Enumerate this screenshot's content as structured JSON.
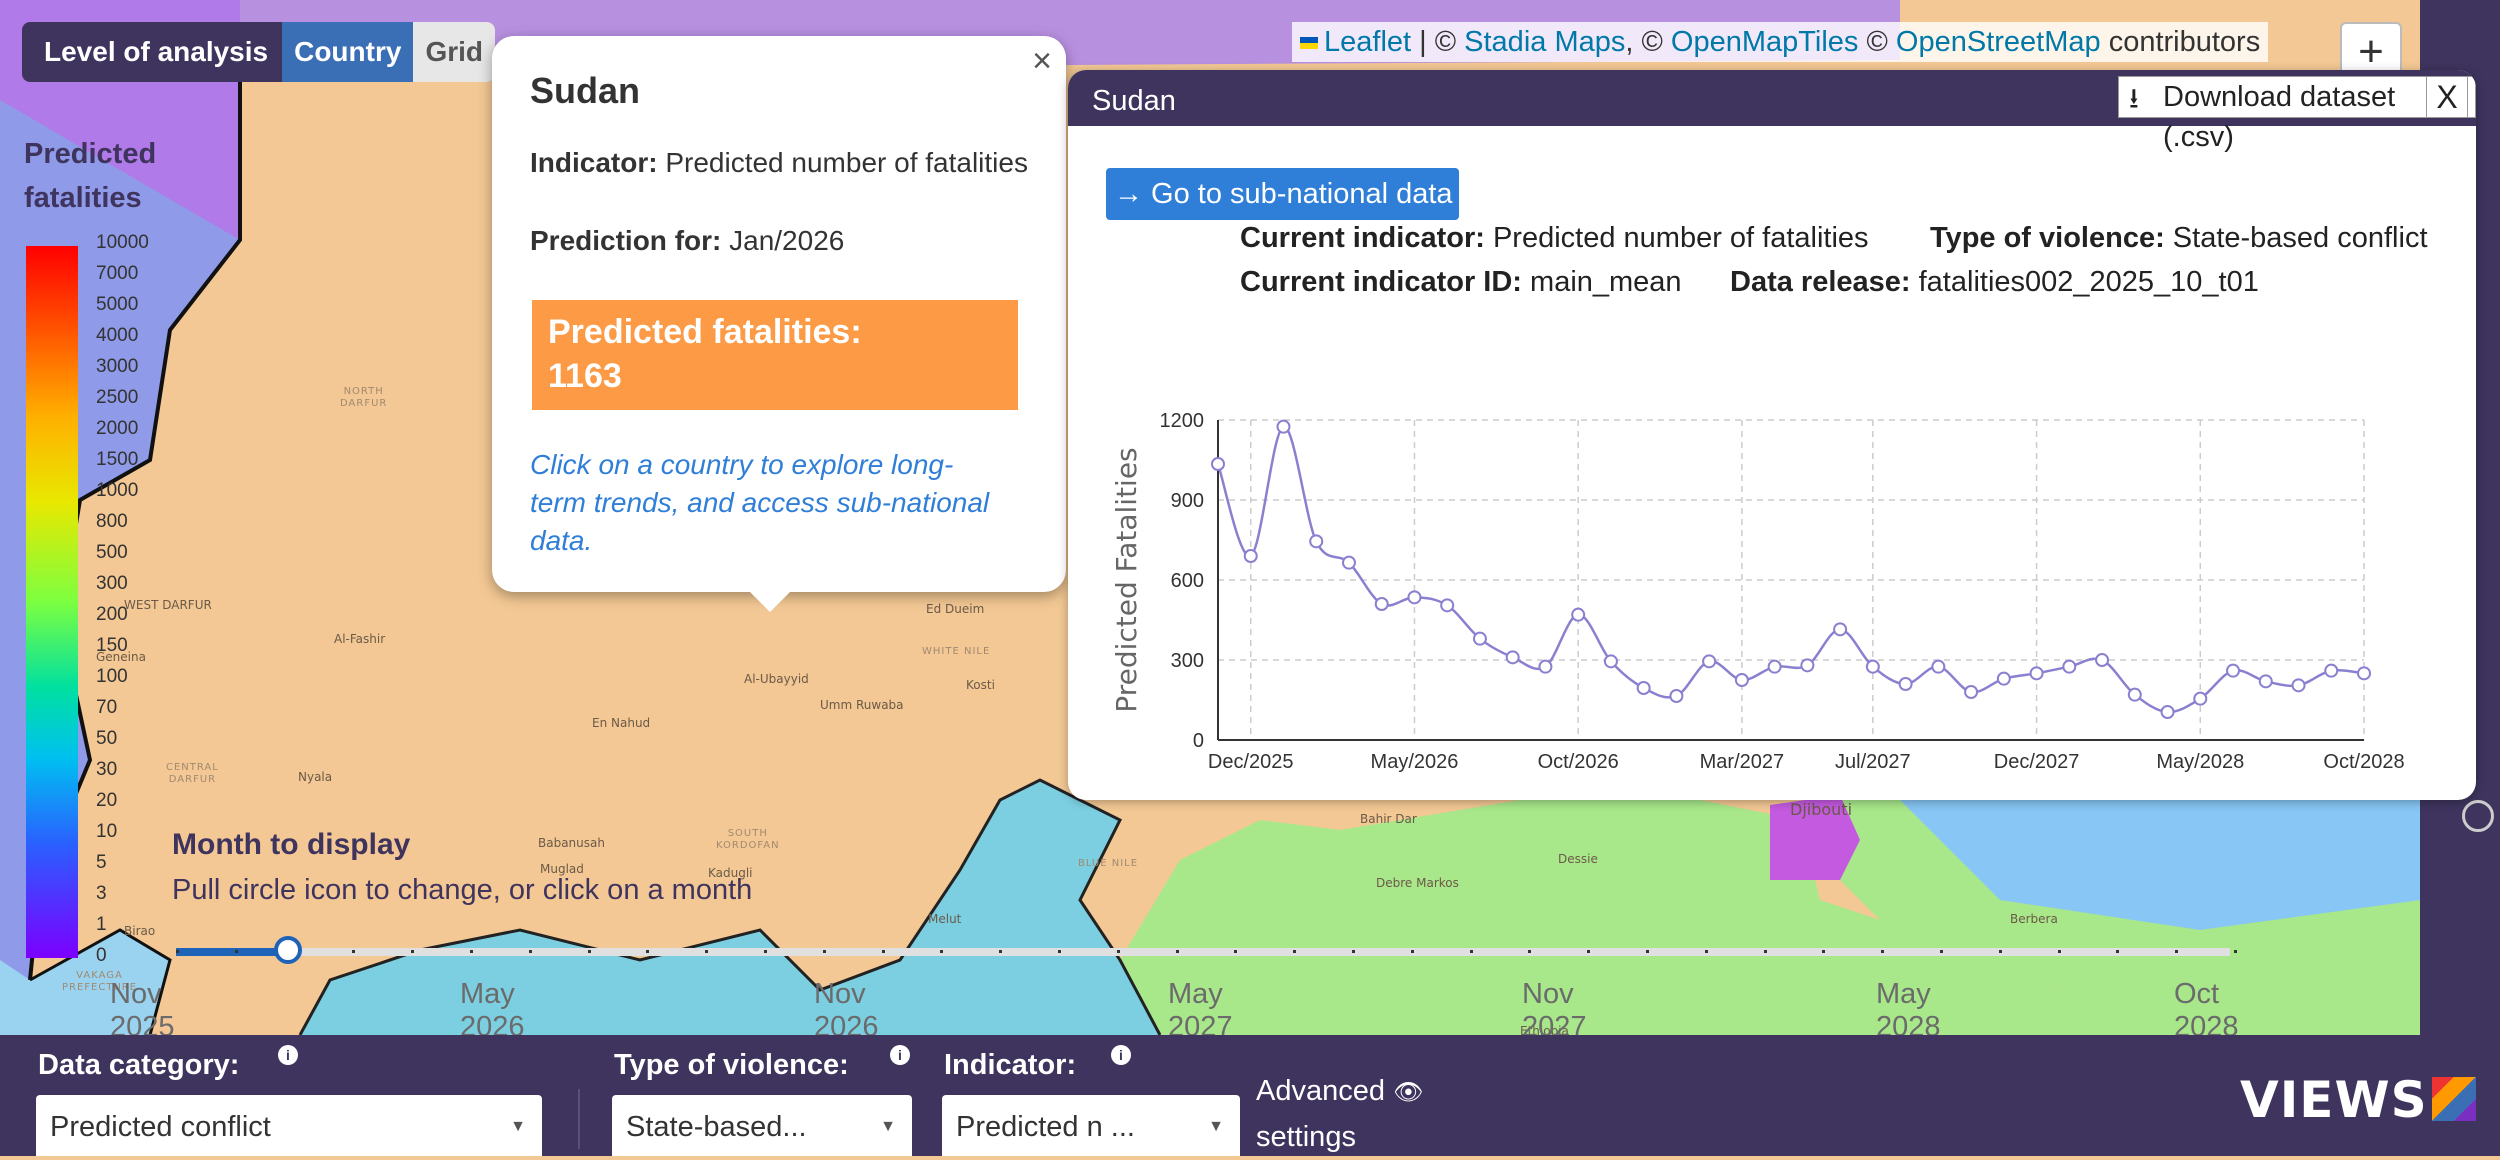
{
  "level": {
    "label": "Level of analysis",
    "options": [
      "Country",
      "Grid"
    ],
    "selected": "Country"
  },
  "legend": {
    "title_line1": "Predicted",
    "title_line2": "fatalities",
    "ticks": [
      "10000",
      "7000",
      "5000",
      "4000",
      "3000",
      "2500",
      "2000",
      "1500",
      "1000",
      "800",
      "500",
      "300",
      "200",
      "150",
      "100",
      "70",
      "50",
      "30",
      "20",
      "10",
      "5",
      "3",
      "1",
      "0"
    ]
  },
  "map_places": [
    {
      "name": "NORTH\nDARFUR",
      "kind": "region"
    },
    {
      "name": "WEST DARFUR",
      "kind": "region"
    },
    {
      "name": "Al-Fashir",
      "kind": "city"
    },
    {
      "name": "Geneina",
      "kind": "city"
    },
    {
      "name": "Nyala",
      "kind": "city"
    },
    {
      "name": "CENTRAL\nDARFUR",
      "kind": "region"
    },
    {
      "name": "En Nahud",
      "kind": "city"
    },
    {
      "name": "Al-Ubayyid",
      "kind": "city"
    },
    {
      "name": "Umm Ruwaba",
      "kind": "city"
    },
    {
      "name": "Kosti",
      "kind": "city"
    },
    {
      "name": "Ed Dueim",
      "kind": "city"
    },
    {
      "name": "WHITE NILE",
      "kind": "region"
    },
    {
      "name": "Babanusah",
      "kind": "city"
    },
    {
      "name": "Muglad",
      "kind": "city"
    },
    {
      "name": "Kadugli",
      "kind": "city"
    },
    {
      "name": "SOUTH\nKORDOFAN",
      "kind": "region"
    },
    {
      "name": "BLUE NILE",
      "kind": "region"
    },
    {
      "name": "Birao",
      "kind": "city"
    },
    {
      "name": "VAKAGA\nPREFECTURE",
      "kind": "region"
    },
    {
      "name": "Melut",
      "kind": "city"
    },
    {
      "name": "Bahir Dar",
      "kind": "city"
    },
    {
      "name": "Djibouti",
      "kind": "city"
    },
    {
      "name": "Dessie",
      "kind": "city"
    },
    {
      "name": "Debre Markos",
      "kind": "city"
    },
    {
      "name": "Berbera",
      "kind": "city"
    },
    {
      "name": "Ethiopia",
      "kind": "region"
    }
  ],
  "popup": {
    "close": "×",
    "title": "Sudan",
    "indicator_label": "Indicator:",
    "indicator_value": "Predicted number of fatalities",
    "prediction_label": "Prediction for:",
    "prediction_value": "Jan/2026",
    "highlight_label": "Predicted fatalities:",
    "highlight_value": "1163",
    "hint": "Click on a country to explore long-term trends, and access sub-national data."
  },
  "panel": {
    "title": "Sudan",
    "download": "Download dataset (.csv)",
    "close": "X",
    "subnational": "→ Go to sub-national data",
    "current_indicator_label": "Current indicator:",
    "current_indicator_value": "Predicted number of fatalities",
    "violence_label": "Type of violence:",
    "violence_value": "State-based conflict",
    "indicator_id_label": "Current indicator ID:",
    "indicator_id_value": "main_mean",
    "release_label": "Data release:",
    "release_value": "fatalities002_2025_10_t01"
  },
  "chart_data": {
    "type": "line",
    "title": "",
    "xlabel": "",
    "ylabel": "Predicted Fatalities",
    "ylim": [
      0,
      1200
    ],
    "yticks": [
      0,
      300,
      600,
      900,
      1200
    ],
    "xtick_labels": [
      "Dec/2025",
      "May/2026",
      "Oct/2026",
      "Mar/2027",
      "Jul/2027",
      "Dec/2027",
      "May/2028",
      "Oct/2028"
    ],
    "xtick_index": [
      1,
      6,
      11,
      16,
      20,
      25,
      30,
      35
    ],
    "grid": true,
    "color": "#8a80d0",
    "series": [
      {
        "name": "",
        "values": [
          1035,
          690,
          1175,
          745,
          665,
          510,
          535,
          505,
          380,
          310,
          275,
          470,
          295,
          195,
          165,
          295,
          225,
          275,
          280,
          415,
          275,
          210,
          275,
          180,
          230,
          250,
          275,
          300,
          170,
          105,
          155,
          260,
          220,
          205,
          260,
          250
        ]
      }
    ]
  },
  "slider": {
    "title": "Month to display",
    "hint": "Pull circle icon to change, or click on a month",
    "labels": [
      "Nov 2025",
      "May 2026",
      "Nov 2026",
      "May 2027",
      "Nov 2027",
      "May 2028",
      "Oct 2028"
    ],
    "position": 1,
    "ticks": 36
  },
  "attribution": {
    "leaflet": "Leaflet",
    "sep1": " | © ",
    "stadia": "Stadia Maps",
    "sep2": ", © ",
    "omt": "OpenMapTiles",
    "sep3": " © ",
    "osm": "OpenStreetMap",
    "tail": " contributors"
  },
  "zoom": {
    "plus": "+"
  },
  "bottom": {
    "data_category_label": "Data category:",
    "data_category_value": "Predicted conflict",
    "violence_label": "Type of violence:",
    "violence_value": "State-based...",
    "indicator_label": "Indicator:",
    "indicator_value": "Predicted n ...",
    "advanced_line1": "Advanced",
    "advanced_line2": "settings",
    "logo": "VIEWS"
  },
  "colors": {
    "brand": "#3e345e",
    "accent": "#2f7ed8",
    "highlight": "#fd9a45",
    "sudan": "#f3c894",
    "south_sudan": "#7ccfe0",
    "ethiopia": "#a8e88a",
    "chad": "#8f9ae8",
    "libya": "#b07ae8",
    "djibouti": "#c45ae0",
    "gulf": "#87c6f5"
  }
}
